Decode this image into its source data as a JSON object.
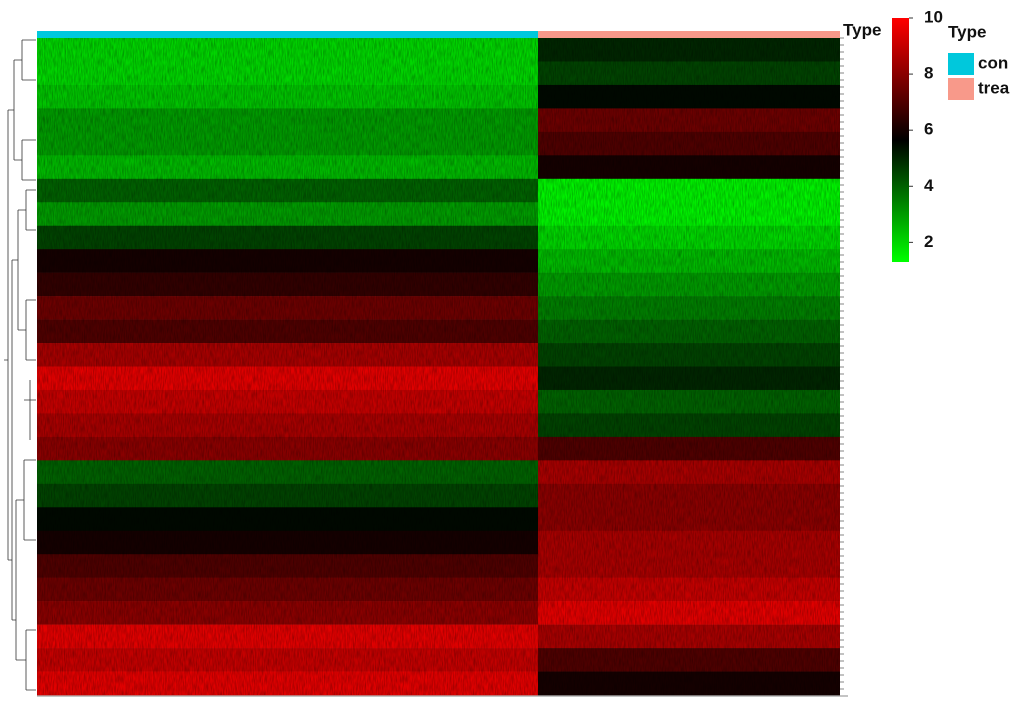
{
  "chart_data": {
    "type": "heatmap",
    "annotation_label": "Type",
    "legend_title": "Type",
    "series": [
      {
        "name": "con",
        "color": "#00c8dc",
        "values": [
          2,
          2,
          2.3,
          3,
          3,
          2.5,
          4,
          3,
          4.5,
          6,
          6.5,
          7.5,
          7,
          8.5,
          9.5,
          9,
          8.5,
          8,
          4,
          4.5,
          5.5,
          6,
          7,
          7.5,
          8,
          9.5,
          9,
          9.5
        ]
      },
      {
        "name": "trea",
        "color": "#f8998a",
        "values": [
          5,
          4.5,
          5.5,
          7.5,
          7,
          6,
          1.5,
          1.5,
          2,
          2.5,
          3,
          3.5,
          4,
          4.5,
          5,
          4,
          4.5,
          7,
          8.5,
          8,
          8,
          8.5,
          8.5,
          9,
          9.5,
          8.5,
          7,
          6
        ]
      }
    ],
    "colormap": [
      "#00ff00",
      "#000000",
      "#ff0000"
    ],
    "clim": [
      1.3,
      10
    ],
    "cticks": [
      2,
      4,
      6,
      8,
      10
    ]
  }
}
